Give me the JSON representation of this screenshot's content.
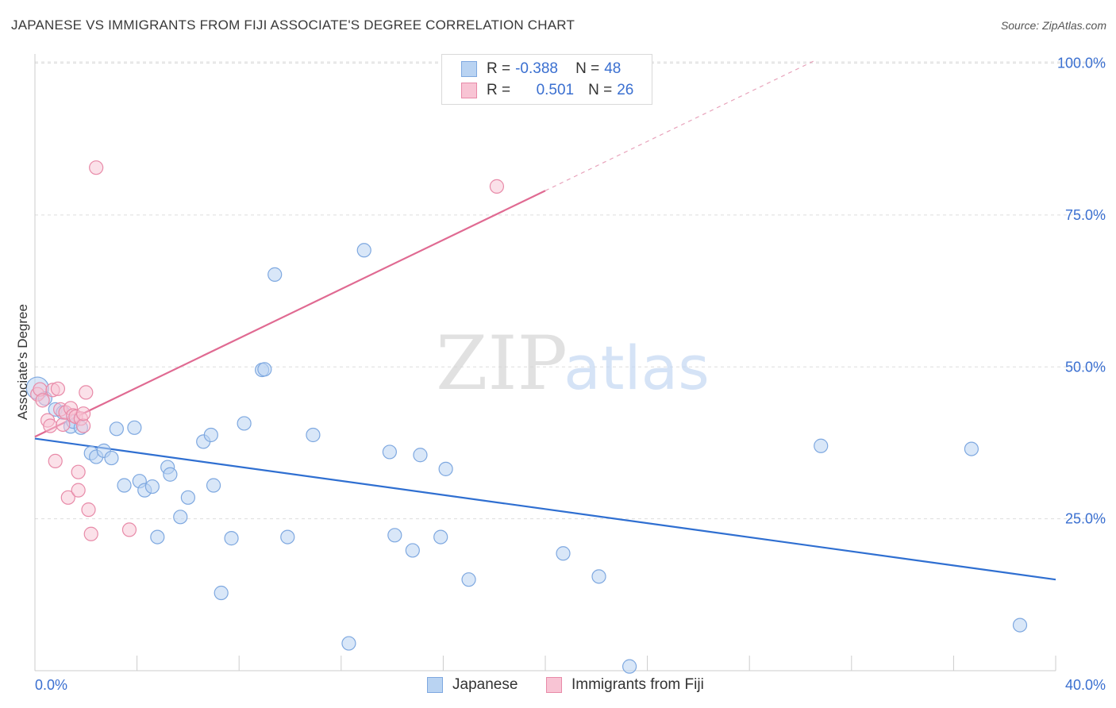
{
  "title": "JAPANESE VS IMMIGRANTS FROM FIJI ASSOCIATE'S DEGREE CORRELATION CHART",
  "source": "Source: ZipAtlas.com",
  "watermark": {
    "zip": "ZIP",
    "atlas": "atlas"
  },
  "legend": {
    "rows": [
      {
        "r_label": "R =",
        "r_value": "-0.388",
        "n_label": "N =",
        "n_value": "48"
      },
      {
        "r_label": "R =",
        "r_value": "0.501",
        "n_label": "N =",
        "n_value": "26"
      }
    ]
  },
  "bottom_legend": {
    "japanese": "Japanese",
    "fiji": "Immigrants from Fiji"
  },
  "colors": {
    "japanese_fill": "#b9d3f2",
    "japanese_stroke": "#7ea8e0",
    "japanese_line": "#2f6fd1",
    "fiji_fill": "#f8c4d4",
    "fiji_stroke": "#e88aa8",
    "fiji_line": "#e06a92",
    "axis_text": "#3a6fd0",
    "grid": "#dddddd"
  },
  "chart_data": {
    "type": "scatter",
    "title": "JAPANESE VS IMMIGRANTS FROM FIJI ASSOCIATE'S DEGREE CORRELATION CHART",
    "xlabel": "",
    "ylabel": "Associate's Degree",
    "xlim": [
      0,
      40
    ],
    "ylim": [
      0,
      102
    ],
    "x_tick_labels": [
      "0.0%",
      "40.0%"
    ],
    "y_ticks": [
      25,
      50,
      75,
      100
    ],
    "y_tick_labels": [
      "25.0%",
      "50.0%",
      "75.0%",
      "100.0%"
    ],
    "grid": true,
    "series": [
      {
        "name": "Japanese",
        "r": -0.388,
        "n": 48,
        "trend": {
          "x0": 0,
          "y0": 38.2,
          "x1": 40,
          "y1": 15.0
        },
        "points": [
          [
            0.1,
            46.5
          ],
          [
            0.4,
            44.8
          ],
          [
            0.8,
            43.0
          ],
          [
            1.1,
            42.5
          ],
          [
            1.4,
            40.2
          ],
          [
            1.5,
            41.0
          ],
          [
            1.8,
            40.0
          ],
          [
            2.2,
            35.8
          ],
          [
            2.4,
            35.2
          ],
          [
            2.7,
            36.2
          ],
          [
            3.0,
            35.0
          ],
          [
            3.2,
            39.8
          ],
          [
            3.5,
            30.5
          ],
          [
            3.9,
            40.0
          ],
          [
            4.1,
            31.2
          ],
          [
            4.3,
            29.7
          ],
          [
            4.6,
            30.3
          ],
          [
            4.8,
            22.0
          ],
          [
            5.2,
            33.5
          ],
          [
            5.3,
            32.3
          ],
          [
            5.7,
            25.3
          ],
          [
            6.0,
            28.5
          ],
          [
            6.6,
            37.7
          ],
          [
            6.9,
            38.8
          ],
          [
            7.0,
            30.5
          ],
          [
            7.3,
            12.8
          ],
          [
            7.7,
            21.8
          ],
          [
            8.2,
            40.7
          ],
          [
            8.9,
            49.5
          ],
          [
            9.0,
            49.6
          ],
          [
            9.4,
            65.2
          ],
          [
            9.9,
            22.0
          ],
          [
            10.9,
            38.8
          ],
          [
            12.3,
            4.5
          ],
          [
            12.9,
            69.2
          ],
          [
            13.9,
            36.0
          ],
          [
            14.1,
            22.3
          ],
          [
            14.8,
            19.8
          ],
          [
            15.1,
            35.5
          ],
          [
            15.9,
            22.0
          ],
          [
            16.1,
            33.2
          ],
          [
            17.0,
            15.0
          ],
          [
            20.7,
            19.3
          ],
          [
            22.1,
            15.5
          ],
          [
            23.3,
            0.7
          ],
          [
            30.8,
            37.0
          ],
          [
            36.7,
            36.5
          ],
          [
            38.6,
            7.5
          ]
        ]
      },
      {
        "name": "Immigrants from Fiji",
        "r": 0.501,
        "n": 26,
        "trend": {
          "x0": 0,
          "y0": 38.5,
          "x1": 20,
          "y1": 79.0
        },
        "trend_dashed_to": {
          "x": 30.6,
          "y": 100.5
        },
        "points": [
          [
            0.1,
            45.5
          ],
          [
            0.2,
            46.3
          ],
          [
            0.3,
            44.5
          ],
          [
            0.5,
            41.2
          ],
          [
            0.6,
            40.3
          ],
          [
            0.7,
            46.2
          ],
          [
            0.8,
            34.5
          ],
          [
            0.9,
            46.4
          ],
          [
            1.0,
            43.0
          ],
          [
            1.1,
            40.5
          ],
          [
            1.2,
            42.5
          ],
          [
            1.3,
            28.5
          ],
          [
            1.4,
            43.2
          ],
          [
            1.5,
            42.0
          ],
          [
            1.6,
            41.8
          ],
          [
            1.7,
            29.7
          ],
          [
            1.7,
            32.7
          ],
          [
            1.8,
            41.5
          ],
          [
            1.9,
            40.3
          ],
          [
            1.9,
            42.3
          ],
          [
            2.0,
            45.8
          ],
          [
            2.1,
            26.5
          ],
          [
            2.2,
            22.5
          ],
          [
            2.4,
            82.8
          ],
          [
            3.7,
            23.2
          ],
          [
            18.1,
            79.7
          ]
        ]
      }
    ]
  }
}
